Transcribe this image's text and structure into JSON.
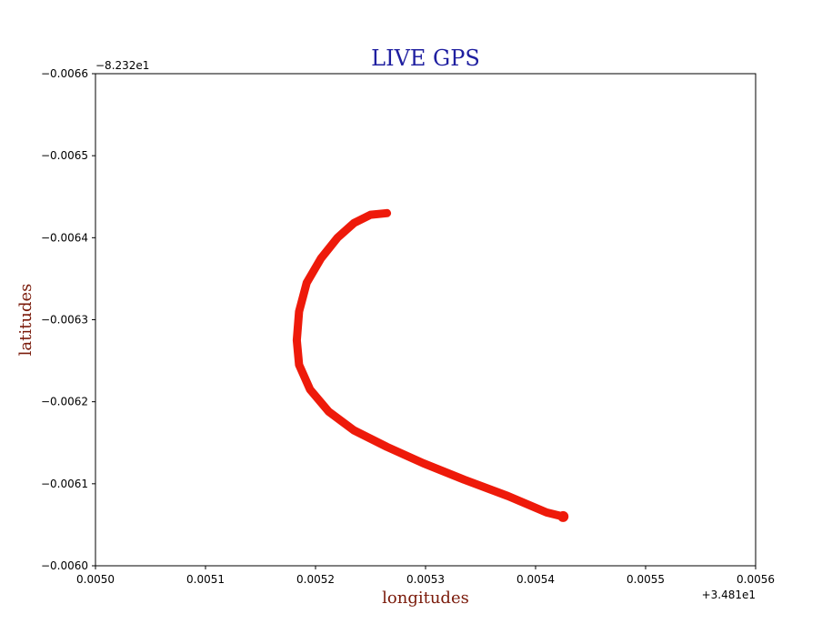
{
  "chart_data": {
    "type": "line",
    "title": "LIVE GPS",
    "xlabel": "longitudes",
    "ylabel": "latitudes",
    "x_offset_label": "+3.481e1",
    "y_offset_label": "−8.232e1",
    "xlim": [
      0.005,
      0.0056
    ],
    "ylim": [
      -0.0066,
      -0.006
    ],
    "y_inverted": true,
    "x_ticks": [
      0.005,
      0.0051,
      0.0052,
      0.0053,
      0.0054,
      0.0055,
      0.0056
    ],
    "x_tick_labels": [
      "0.0050",
      "0.0051",
      "0.0052",
      "0.0053",
      "0.0054",
      "0.0055",
      "0.0056"
    ],
    "y_ticks": [
      -0.0066,
      -0.0065,
      -0.0064,
      -0.0063,
      -0.0062,
      -0.0061,
      -0.006
    ],
    "y_tick_labels": [
      "−0.0066",
      "−0.0065",
      "−0.0064",
      "−0.0063",
      "−0.0062",
      "−0.0061",
      "−0.0060"
    ],
    "grid": false,
    "colors": {
      "title": "#1f1fa0",
      "axis_labels": "#7a1a0a",
      "series": "#ee1a0a"
    },
    "series": [
      {
        "x": [
          0.005265,
          0.00525,
          0.005235,
          0.00522,
          0.005205,
          0.005192,
          0.005185,
          0.005183,
          0.005185,
          0.005195,
          0.005212,
          0.005235,
          0.005265,
          0.005298,
          0.005335,
          0.005375,
          0.00541,
          0.005425
        ],
        "y": [
          -0.00643,
          -0.006428,
          -0.006418,
          -0.0064,
          -0.006375,
          -0.006345,
          -0.00631,
          -0.006275,
          -0.006245,
          -0.006215,
          -0.006188,
          -0.006165,
          -0.006145,
          -0.006125,
          -0.006105,
          -0.006085,
          -0.006065,
          -0.00606
        ]
      }
    ]
  }
}
